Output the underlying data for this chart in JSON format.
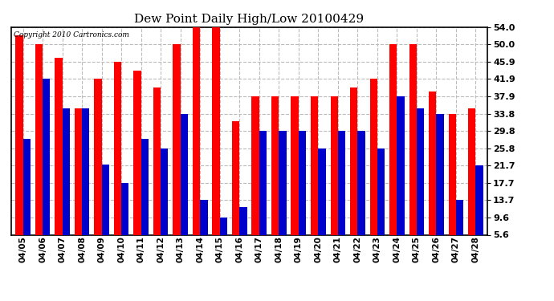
{
  "title": "Dew Point Daily High/Low 20100429",
  "copyright": "Copyright 2010 Cartronics.com",
  "dates": [
    "04/05",
    "04/06",
    "04/07",
    "04/08",
    "04/09",
    "04/10",
    "04/11",
    "04/12",
    "04/13",
    "04/14",
    "04/15",
    "04/16",
    "04/17",
    "04/18",
    "04/19",
    "04/20",
    "04/21",
    "04/22",
    "04/23",
    "04/24",
    "04/25",
    "04/26",
    "04/27",
    "04/28"
  ],
  "highs": [
    52.0,
    50.0,
    46.9,
    35.1,
    41.9,
    45.9,
    43.9,
    39.9,
    50.0,
    54.0,
    54.0,
    32.0,
    37.9,
    37.9,
    37.9,
    37.9,
    37.9,
    39.9,
    41.9,
    50.0,
    50.0,
    39.0,
    33.8,
    35.1
  ],
  "lows": [
    28.0,
    41.9,
    35.1,
    35.1,
    22.0,
    17.7,
    28.0,
    25.8,
    33.8,
    13.7,
    9.6,
    12.0,
    29.8,
    29.8,
    29.8,
    25.8,
    29.8,
    29.8,
    25.8,
    37.9,
    35.1,
    33.8,
    13.7,
    21.7
  ],
  "high_color": "#ff0000",
  "low_color": "#0000cc",
  "bg_color": "#ffffff",
  "grid_color": "#bbbbbb",
  "yticks": [
    5.6,
    9.6,
    13.7,
    17.7,
    21.7,
    25.8,
    29.8,
    33.8,
    37.9,
    41.9,
    45.9,
    50.0,
    54.0
  ],
  "ymin": 5.6,
  "ymax": 54.0,
  "bar_width": 0.38
}
